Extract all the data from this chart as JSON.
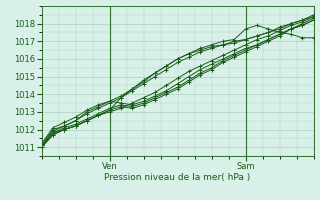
{
  "title": "",
  "xlabel": "Pression niveau de la mer( hPa )",
  "ylabel": "",
  "bg_color": "#d8f0e8",
  "grid_color": "#aacfba",
  "line_color": "#1a5c1a",
  "marker_color": "#1a5c1a",
  "ylim": [
    1010.5,
    1018.8
  ],
  "xlim": [
    0,
    48
  ],
  "ven_x": 12,
  "sam_x": 36,
  "yticks": [
    1011,
    1012,
    1013,
    1014,
    1015,
    1016,
    1017,
    1018
  ],
  "series": [
    [
      0,
      1011.0,
      2,
      1011.8,
      4,
      1012.0,
      6,
      1012.2,
      8,
      1012.5,
      10,
      1012.8,
      12,
      1013.0,
      14,
      1013.2,
      16,
      1013.5,
      18,
      1013.8,
      20,
      1014.1,
      22,
      1014.5,
      24,
      1014.9,
      26,
      1015.3,
      28,
      1015.6,
      30,
      1015.9,
      32,
      1016.2,
      34,
      1016.5,
      36,
      1016.8,
      38,
      1017.1,
      40,
      1017.3,
      42,
      1017.6,
      44,
      1017.9,
      46,
      1018.1,
      48,
      1018.4
    ],
    [
      0,
      1011.1,
      2,
      1011.9,
      4,
      1012.2,
      6,
      1012.5,
      8,
      1012.9,
      10,
      1013.2,
      12,
      1013.5,
      14,
      1013.8,
      16,
      1014.2,
      18,
      1014.6,
      20,
      1015.0,
      22,
      1015.4,
      24,
      1015.8,
      26,
      1016.1,
      28,
      1016.4,
      30,
      1016.6,
      32,
      1016.8,
      34,
      1016.9,
      36,
      1017.1,
      38,
      1017.3,
      40,
      1017.5,
      42,
      1017.7,
      44,
      1018.0,
      46,
      1018.2,
      48,
      1018.4
    ],
    [
      0,
      1011.1,
      2,
      1012.0,
      4,
      1012.2,
      6,
      1012.5,
      8,
      1013.0,
      10,
      1013.3,
      12,
      1013.6,
      14,
      1013.9,
      16,
      1014.3,
      18,
      1014.7,
      20,
      1015.2,
      22,
      1015.6,
      24,
      1016.0,
      26,
      1016.3,
      28,
      1016.5,
      30,
      1016.7,
      32,
      1016.8,
      34,
      1017.0,
      36,
      1017.1,
      38,
      1017.3,
      40,
      1017.5,
      42,
      1017.8,
      44,
      1018.0,
      46,
      1018.2,
      48,
      1018.5
    ],
    [
      0,
      1011.2,
      2,
      1012.1,
      4,
      1012.4,
      6,
      1012.7,
      8,
      1013.1,
      10,
      1013.4,
      12,
      1013.6,
      14,
      1013.5,
      16,
      1013.4,
      18,
      1013.6,
      20,
      1013.9,
      22,
      1014.2,
      24,
      1014.6,
      26,
      1015.0,
      28,
      1015.4,
      30,
      1015.7,
      32,
      1016.0,
      34,
      1016.3,
      36,
      1016.6,
      38,
      1016.8,
      40,
      1017.1,
      42,
      1017.4,
      44,
      1017.7,
      46,
      1018.0,
      48,
      1018.3
    ],
    [
      0,
      1011.0,
      2,
      1011.8,
      4,
      1012.1,
      6,
      1012.3,
      8,
      1012.6,
      10,
      1012.9,
      12,
      1013.2,
      14,
      1013.4,
      16,
      1013.3,
      18,
      1013.5,
      20,
      1013.8,
      22,
      1014.1,
      24,
      1014.4,
      26,
      1014.8,
      28,
      1015.2,
      30,
      1015.5,
      32,
      1015.9,
      34,
      1016.2,
      36,
      1016.5,
      38,
      1016.8,
      40,
      1017.1,
      42,
      1017.4,
      44,
      1017.7,
      46,
      1017.9,
      48,
      1018.2
    ],
    [
      0,
      1011.0,
      2,
      1011.7,
      4,
      1012.0,
      6,
      1012.2,
      8,
      1012.5,
      10,
      1012.8,
      12,
      1013.1,
      14,
      1013.3,
      16,
      1013.2,
      18,
      1013.4,
      20,
      1013.7,
      22,
      1014.0,
      24,
      1014.3,
      26,
      1014.7,
      28,
      1015.1,
      30,
      1015.4,
      32,
      1015.8,
      34,
      1016.1,
      36,
      1016.4,
      38,
      1016.7,
      40,
      1017.0,
      42,
      1017.3,
      44,
      1017.7,
      46,
      1017.9,
      48,
      1018.2
    ],
    [
      0,
      1011.0,
      2,
      1011.7,
      4,
      1012.0,
      6,
      1012.2,
      8,
      1012.5,
      10,
      1012.8,
      12,
      1013.1,
      14,
      1013.8,
      16,
      1014.3,
      18,
      1014.8,
      20,
      1015.2,
      22,
      1015.6,
      24,
      1016.0,
      26,
      1016.3,
      28,
      1016.6,
      30,
      1016.8,
      32,
      1017.0,
      34,
      1017.1,
      36,
      1017.7,
      38,
      1017.9,
      40,
      1017.7,
      42,
      1017.5,
      44,
      1017.4,
      46,
      1017.2,
      48,
      1017.2
    ]
  ]
}
